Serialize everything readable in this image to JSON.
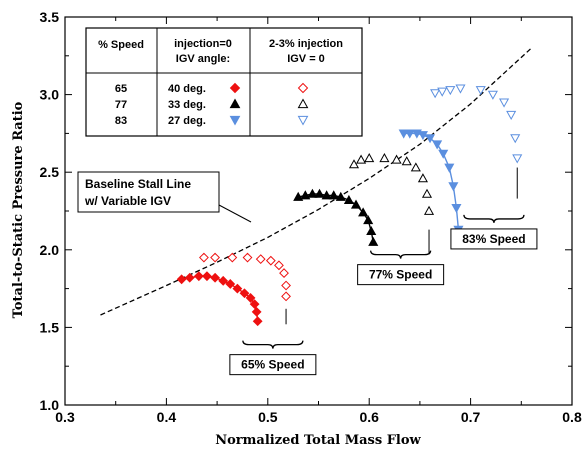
{
  "chart_data": {
    "type": "scatter",
    "title": "",
    "xlabel": "Normalized Total Mass Flow",
    "ylabel": "Total-to-Static Pressure Ratio",
    "xlim": [
      0.3,
      0.8
    ],
    "ylim": [
      1.0,
      3.5
    ],
    "xticks": [
      "0.3",
      "0.4",
      "0.5",
      "0.6",
      "0.7",
      "0.8"
    ],
    "yticks": [
      "1.0",
      "1.5",
      "2.0",
      "2.5",
      "3.0",
      "3.5"
    ],
    "grid": false,
    "colors": {
      "s65": "#ee1111",
      "s77": "#000000",
      "s83": "#5b8fdf",
      "stall": "#000000"
    },
    "stall_line": {
      "label_line1": "Baseline Stall Line",
      "label_line2": "w/ Variable IGV",
      "x": [
        0.335,
        0.4,
        0.45,
        0.5,
        0.55,
        0.6,
        0.65,
        0.7,
        0.76
      ],
      "y": [
        1.58,
        1.77,
        1.92,
        2.08,
        2.26,
        2.46,
        2.68,
        2.94,
        3.3
      ]
    },
    "legend": {
      "headers": [
        "% Speed",
        "injection=0",
        "IGV angle:",
        "2-3% injection",
        "IGV = 0"
      ],
      "rows": [
        {
          "speed": "65",
          "angle": "40 deg."
        },
        {
          "speed": "77",
          "angle": "33 deg."
        },
        {
          "speed": "83",
          "angle": "27 deg."
        }
      ]
    },
    "series": [
      {
        "speed": "65",
        "marker": "diamond",
        "filled": true,
        "x": [
          0.415,
          0.423,
          0.432,
          0.44,
          0.448,
          0.456,
          0.463,
          0.47,
          0.477,
          0.483,
          0.487,
          0.489,
          0.49
        ],
        "y": [
          1.81,
          1.82,
          1.83,
          1.83,
          1.82,
          1.8,
          1.78,
          1.75,
          1.72,
          1.69,
          1.65,
          1.6,
          1.54
        ]
      },
      {
        "speed": "65",
        "marker": "diamond",
        "filled": false,
        "x": [
          0.437,
          0.448,
          0.465,
          0.48,
          0.493,
          0.503,
          0.511,
          0.516,
          0.518,
          0.518
        ],
        "y": [
          1.95,
          1.95,
          1.95,
          1.95,
          1.94,
          1.93,
          1.9,
          1.85,
          1.77,
          1.7
        ]
      },
      {
        "speed": "77",
        "marker": "triangle-up",
        "filled": true,
        "x": [
          0.53,
          0.537,
          0.544,
          0.551,
          0.558,
          0.565,
          0.572,
          0.58,
          0.587,
          0.594,
          0.599,
          0.602,
          0.604
        ],
        "y": [
          2.34,
          2.35,
          2.36,
          2.36,
          2.35,
          2.35,
          2.34,
          2.32,
          2.29,
          2.24,
          2.19,
          2.12,
          2.05
        ]
      },
      {
        "speed": "77",
        "marker": "triangle-up",
        "filled": false,
        "x": [
          0.585,
          0.592,
          0.6,
          0.615,
          0.627,
          0.637,
          0.646,
          0.653,
          0.657,
          0.659
        ],
        "y": [
          2.55,
          2.58,
          2.59,
          2.59,
          2.58,
          2.57,
          2.53,
          2.46,
          2.36,
          2.25
        ]
      },
      {
        "speed": "83",
        "marker": "triangle-down",
        "filled": true,
        "x": [
          0.634,
          0.64,
          0.647,
          0.653,
          0.66,
          0.667,
          0.673,
          0.679,
          0.683,
          0.686,
          0.688
        ],
        "y": [
          2.75,
          2.75,
          2.75,
          2.74,
          2.72,
          2.68,
          2.62,
          2.53,
          2.41,
          2.27,
          2.13
        ]
      },
      {
        "speed": "83",
        "marker": "triangle-down",
        "filled": false,
        "x": [
          0.665,
          0.672,
          0.68,
          0.69,
          0.71,
          0.722,
          0.733,
          0.74,
          0.744,
          0.746
        ],
        "y": [
          3.01,
          3.02,
          3.03,
          3.04,
          3.03,
          3.0,
          2.95,
          2.87,
          2.72,
          2.59
        ]
      }
    ],
    "annotations": [
      {
        "text": "65% Speed",
        "x": 0.505,
        "y": 1.26
      },
      {
        "text": "77% Speed",
        "x": 0.631,
        "y": 1.84
      },
      {
        "text": "83% Speed",
        "x": 0.723,
        "y": 2.07
      }
    ]
  }
}
